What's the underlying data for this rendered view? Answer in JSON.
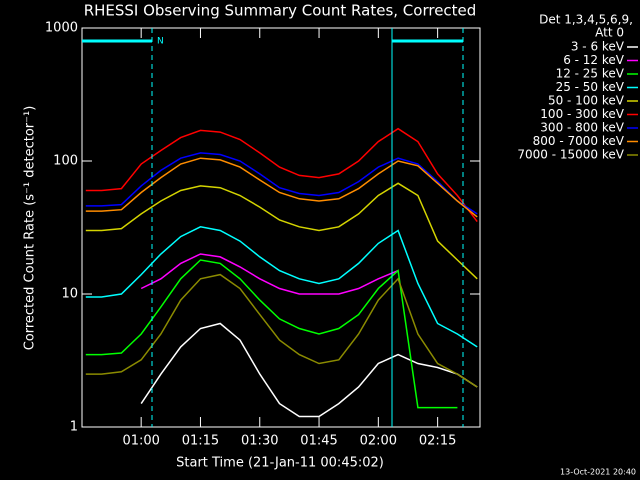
{
  "chart_data": {
    "type": "line",
    "title": "RHESSI Observing Summary Count Rates, Corrected",
    "xlabel": "Start Time (21-Jan-11 00:45:02)",
    "ylabel": "Corrected Count Rate (s⁻¹ detector⁻¹)",
    "legend_title": "Det 1,3,4,5,6,9,",
    "legend_subtitle": "Att 0",
    "annotation": "N",
    "timestamp": "13-Oct-2021 20:40",
    "log_y": true,
    "x": [
      46,
      50,
      55,
      60,
      65,
      70,
      75,
      80,
      85,
      90,
      95,
      100,
      105,
      110,
      115,
      120,
      125,
      130,
      135,
      140,
      145
    ],
    "xlim": [
      45.03,
      145.72
    ],
    "xticks": [
      {
        "value": 60,
        "label": "01:00"
      },
      {
        "value": 75,
        "label": "01:15"
      },
      {
        "value": 90,
        "label": "01:30"
      },
      {
        "value": 105,
        "label": "01:45"
      },
      {
        "value": 120,
        "label": "02:00"
      },
      {
        "value": 135,
        "label": "02:15"
      }
    ],
    "ylim": [
      1,
      1000
    ],
    "yticks": [
      1,
      10,
      100,
      1000
    ],
    "series": [
      {
        "name": "3 - 6 keV",
        "color": "#ffffff",
        "values": [
          null,
          null,
          null,
          1.5,
          2.5,
          4,
          5.5,
          6,
          4.5,
          2.5,
          1.5,
          1.2,
          1.2,
          1.5,
          2,
          3,
          3.5,
          3,
          2.8,
          2.5,
          2
        ]
      },
      {
        "name": "6 - 12 keV",
        "color": "#ff00ff",
        "values": [
          null,
          null,
          null,
          11,
          13,
          17,
          20,
          19,
          16,
          13,
          11,
          10,
          10,
          10,
          11,
          13,
          15,
          null,
          null,
          null,
          null
        ]
      },
      {
        "name": "12 - 25 keV",
        "color": "#00ff00",
        "values": [
          3.5,
          3.5,
          3.6,
          5,
          8,
          13,
          18,
          17,
          13,
          9,
          6.5,
          5.5,
          5,
          5.5,
          7,
          11,
          15,
          1.4,
          1.4,
          1.4,
          null
        ]
      },
      {
        "name": "25 - 50 keV",
        "color": "#00ffff",
        "values": [
          9.5,
          9.5,
          10,
          14,
          20,
          27,
          32,
          30,
          25,
          19,
          15,
          13,
          12,
          13,
          17,
          24,
          30,
          12,
          6,
          5,
          4
        ]
      },
      {
        "name": "50 - 100 keV",
        "color": "#d4d400",
        "values": [
          30,
          30,
          31,
          40,
          50,
          60,
          65,
          63,
          55,
          45,
          36,
          32,
          30,
          32,
          40,
          55,
          68,
          55,
          25,
          18,
          13
        ]
      },
      {
        "name": "100 - 300 keV",
        "color": "#ff0000",
        "values": [
          60,
          60,
          62,
          95,
          120,
          150,
          170,
          165,
          145,
          115,
          90,
          78,
          75,
          80,
          100,
          140,
          175,
          140,
          80,
          55,
          35
        ]
      },
      {
        "name": "300 - 800 keV",
        "color": "#0000ff",
        "values": [
          46,
          46,
          47,
          65,
          85,
          105,
          115,
          112,
          100,
          80,
          63,
          57,
          55,
          58,
          70,
          90,
          105,
          95,
          70,
          50,
          40
        ]
      },
      {
        "name": "800 - 7000 keV",
        "color": "#ff8c00",
        "values": [
          42,
          42,
          43,
          58,
          75,
          95,
          105,
          102,
          90,
          72,
          58,
          52,
          50,
          52,
          62,
          80,
          100,
          92,
          68,
          50,
          38
        ]
      },
      {
        "name": "7000 - 15000 keV",
        "color": "#8b8b00",
        "values": [
          2.5,
          2.5,
          2.6,
          3.2,
          5,
          9,
          13,
          14,
          11,
          7,
          4.5,
          3.5,
          3,
          3.2,
          5,
          9,
          13,
          5,
          3,
          2.5,
          2
        ]
      }
    ]
  }
}
